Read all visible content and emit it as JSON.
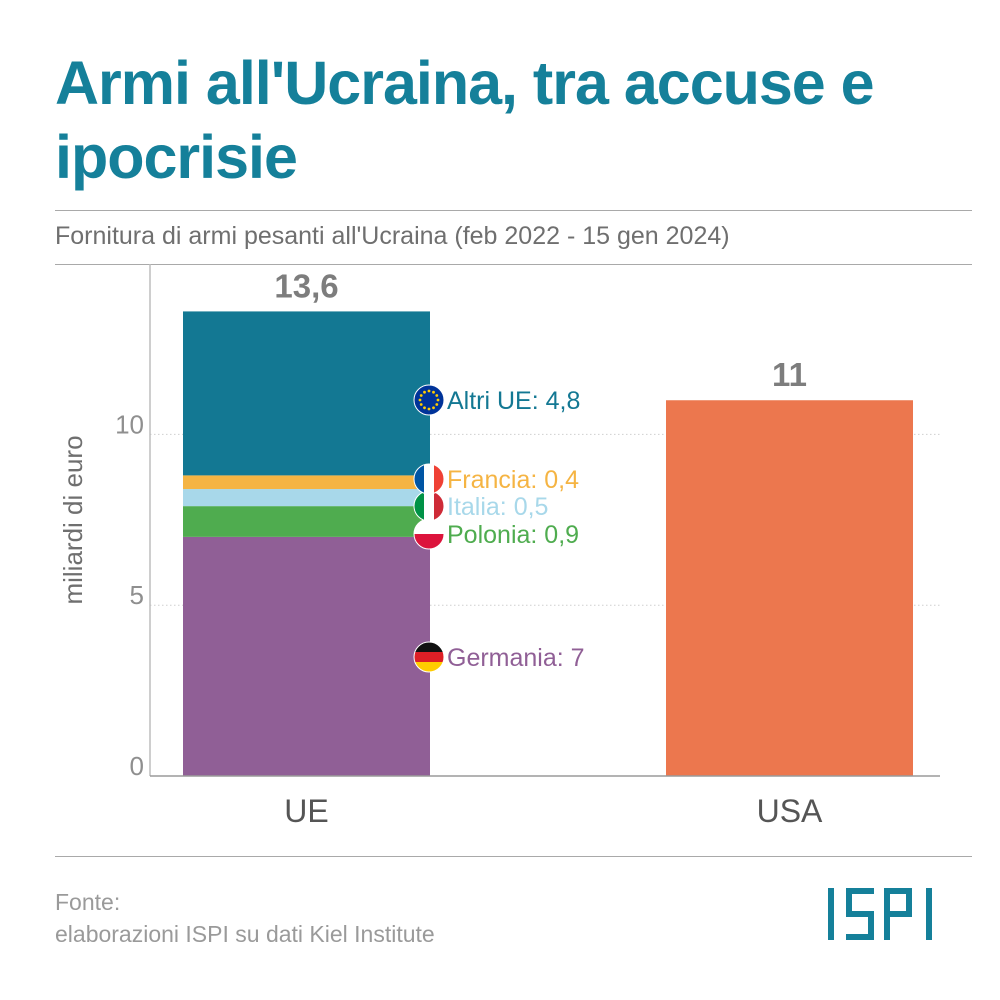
{
  "header": {
    "title": "Armi all'Ucraina, tra accuse e ipocrisie",
    "subtitle": "Fornitura di armi pesanti all'Ucraina (feb 2022 - 15 gen 2024)"
  },
  "footer": {
    "source_label": "Fonte:",
    "source_text": "elaborazioni ISPI su dati Kiel Institute",
    "logo_text": "ISPI"
  },
  "colors": {
    "title": "#15809a",
    "germania": "#905f96",
    "polonia": "#4fac4f",
    "italia": "#a8d8ea",
    "francia": "#f5b443",
    "altri_ue": "#137893",
    "usa": "#ec774e"
  },
  "chart_data": {
    "type": "bar",
    "stacked": true,
    "ylabel": "miliardi di euro",
    "xlabel": "",
    "ylim": [
      0,
      15
    ],
    "yticks": [
      0,
      5,
      10
    ],
    "categories": [
      "UE",
      "USA"
    ],
    "bars": [
      {
        "category": "UE",
        "total_label": "13,6",
        "segments": [
          {
            "name": "Germania",
            "value": 7,
            "label": "Germania: 7",
            "color": "#905f96",
            "label_color": "#905f96",
            "icon": "flag-germany-icon"
          },
          {
            "name": "Polonia",
            "value": 0.9,
            "label": "Polonia: 0,9",
            "color": "#4fac4f",
            "label_color": "#4fac4f",
            "icon": "flag-poland-icon"
          },
          {
            "name": "Italia",
            "value": 0.5,
            "label": "Italia: 0,5",
            "color": "#a8d8ea",
            "label_color": "#a8d8ea",
            "icon": "flag-italy-icon"
          },
          {
            "name": "Francia",
            "value": 0.4,
            "label": "Francia: 0,4",
            "color": "#f5b443",
            "label_color": "#f5b443",
            "icon": "flag-france-icon"
          },
          {
            "name": "Altri UE",
            "value": 4.8,
            "label": "Altri UE: 4,8",
            "color": "#137893",
            "label_color": "#137893",
            "icon": "flag-eu-icon"
          }
        ]
      },
      {
        "category": "USA",
        "total_label": "11",
        "segments": [
          {
            "name": "USA",
            "value": 11,
            "label": "",
            "color": "#ec774e",
            "label_color": "#ec774e",
            "icon": ""
          }
        ]
      }
    ]
  }
}
